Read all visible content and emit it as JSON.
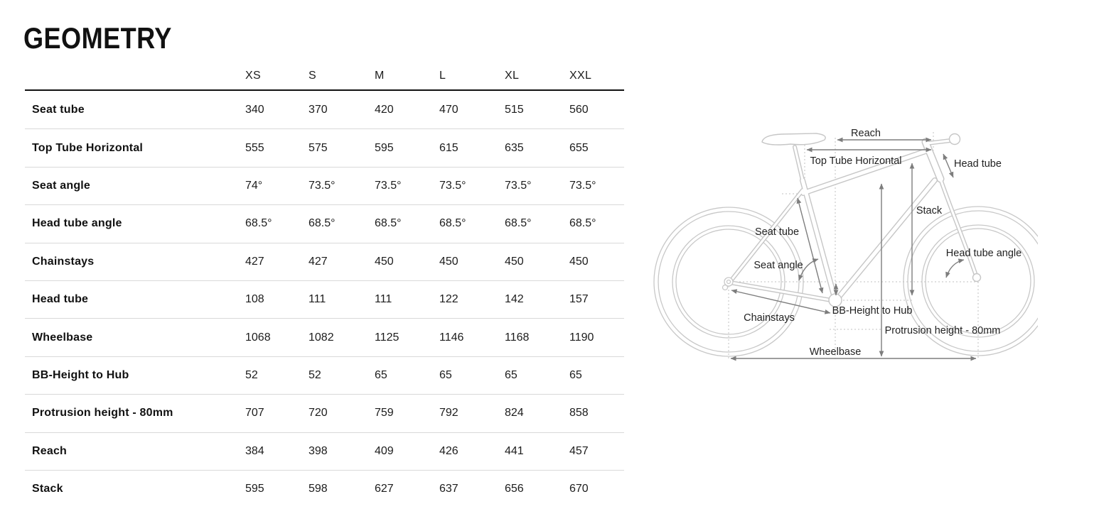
{
  "title": "GEOMETRY",
  "table": {
    "size_headers": [
      "XS",
      "S",
      "M",
      "L",
      "XL",
      "XXL"
    ],
    "rows": [
      {
        "label": "Seat tube",
        "values": [
          "340",
          "370",
          "420",
          "470",
          "515",
          "560"
        ]
      },
      {
        "label": "Top Tube Horizontal",
        "values": [
          "555",
          "575",
          "595",
          "615",
          "635",
          "655"
        ]
      },
      {
        "label": "Seat angle",
        "values": [
          "74°",
          "73.5°",
          "73.5°",
          "73.5°",
          "73.5°",
          "73.5°"
        ]
      },
      {
        "label": "Head tube angle",
        "values": [
          "68.5°",
          "68.5°",
          "68.5°",
          "68.5°",
          "68.5°",
          "68.5°"
        ]
      },
      {
        "label": "Chainstays",
        "values": [
          "427",
          "427",
          "450",
          "450",
          "450",
          "450"
        ]
      },
      {
        "label": "Head tube",
        "values": [
          "108",
          "111",
          "111",
          "122",
          "142",
          "157"
        ]
      },
      {
        "label": "Wheelbase",
        "values": [
          "1068",
          "1082",
          "1125",
          "1146",
          "1168",
          "1190"
        ]
      },
      {
        "label": "BB-Height to Hub",
        "values": [
          "52",
          "52",
          "65",
          "65",
          "65",
          "65"
        ]
      },
      {
        "label": "Protrusion height - 80mm",
        "values": [
          "707",
          "720",
          "759",
          "792",
          "824",
          "858"
        ]
      },
      {
        "label": "Reach",
        "values": [
          "384",
          "398",
          "409",
          "426",
          "441",
          "457"
        ]
      },
      {
        "label": "Stack",
        "values": [
          "595",
          "598",
          "627",
          "637",
          "656",
          "670"
        ]
      }
    ]
  },
  "chart_data": {
    "type": "table",
    "title": "GEOMETRY",
    "categories": [
      "XS",
      "S",
      "M",
      "L",
      "XL",
      "XXL"
    ],
    "series": [
      {
        "name": "Seat tube",
        "values": [
          340,
          370,
          420,
          470,
          515,
          560
        ]
      },
      {
        "name": "Top Tube Horizontal",
        "values": [
          555,
          575,
          595,
          615,
          635,
          655
        ]
      },
      {
        "name": "Seat angle",
        "values": [
          74,
          73.5,
          73.5,
          73.5,
          73.5,
          73.5
        ]
      },
      {
        "name": "Head tube angle",
        "values": [
          68.5,
          68.5,
          68.5,
          68.5,
          68.5,
          68.5
        ]
      },
      {
        "name": "Chainstays",
        "values": [
          427,
          427,
          450,
          450,
          450,
          450
        ]
      },
      {
        "name": "Head tube",
        "values": [
          108,
          111,
          111,
          122,
          142,
          157
        ]
      },
      {
        "name": "Wheelbase",
        "values": [
          1068,
          1082,
          1125,
          1146,
          1168,
          1190
        ]
      },
      {
        "name": "BB-Height to Hub",
        "values": [
          52,
          52,
          65,
          65,
          65,
          65
        ]
      },
      {
        "name": "Protrusion height - 80mm",
        "values": [
          707,
          720,
          759,
          792,
          824,
          858
        ]
      },
      {
        "name": "Reach",
        "values": [
          384,
          398,
          409,
          426,
          441,
          457
        ]
      },
      {
        "name": "Stack",
        "values": [
          595,
          598,
          627,
          637,
          656,
          670
        ]
      }
    ]
  },
  "diagram": {
    "labels": {
      "reach": "Reach",
      "top_tube_horizontal": "Top Tube Horizontal",
      "head_tube": "Head tube",
      "stack": "Stack",
      "seat_tube": "Seat tube",
      "head_tube_angle": "Head tube angle",
      "seat_angle": "Seat angle",
      "chainstays": "Chainstays",
      "bb_height_to_hub": "BB-Height to Hub",
      "protrusion_height": "Protrusion height - 80mm",
      "wheelbase": "Wheelbase"
    }
  },
  "colors": {
    "text": "#1c1c1c",
    "header_rule": "#111111",
    "row_separator": "#d9d9d9",
    "bike_line": "#c6c6c6",
    "dotted_guide": "#c2c2c2",
    "dimension_arrow": "#7d7d7d"
  }
}
